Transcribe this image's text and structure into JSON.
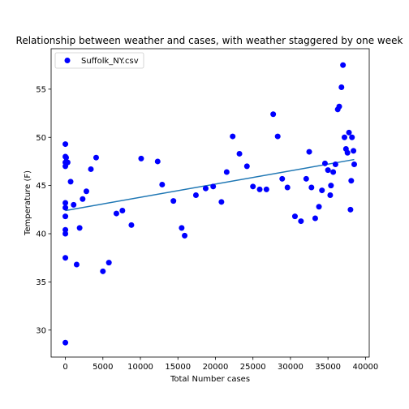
{
  "chart_data": {
    "type": "scatter",
    "title": "Relationship between weather and cases, with weather staggered by one week",
    "xlabel": "Total Number cases",
    "ylabel": "Temperature (F)",
    "xlim": [
      -1900,
      40500
    ],
    "ylim": [
      27.2,
      59.2
    ],
    "xticks": [
      0,
      5000,
      10000,
      15000,
      20000,
      25000,
      30000,
      35000,
      40000
    ],
    "yticks": [
      30,
      35,
      40,
      45,
      50,
      55
    ],
    "grid": false,
    "legend": {
      "placement": "top-left",
      "entries": [
        "Suffolk_NY.csv"
      ]
    },
    "colors": {
      "points": "#0000ff",
      "fit_line": "#1f77b4"
    },
    "series": [
      {
        "name": "Suffolk_NY.csv",
        "points": [
          [
            0,
            28.7
          ],
          [
            0,
            37.5
          ],
          [
            0,
            40.0
          ],
          [
            0,
            40.4
          ],
          [
            0,
            41.8
          ],
          [
            0,
            42.7
          ],
          [
            0,
            43.2
          ],
          [
            0,
            47.0
          ],
          [
            0,
            47.4
          ],
          [
            0,
            48.0
          ],
          [
            0,
            49.3
          ],
          [
            100,
            47.9
          ],
          [
            300,
            47.4
          ],
          [
            700,
            45.4
          ],
          [
            1100,
            43.0
          ],
          [
            1500,
            36.8
          ],
          [
            1900,
            40.6
          ],
          [
            2300,
            43.6
          ],
          [
            2800,
            44.4
          ],
          [
            3400,
            46.7
          ],
          [
            4100,
            47.9
          ],
          [
            5000,
            36.1
          ],
          [
            5800,
            37.0
          ],
          [
            6800,
            42.1
          ],
          [
            7600,
            42.4
          ],
          [
            8800,
            40.9
          ],
          [
            10100,
            47.8
          ],
          [
            12300,
            47.5
          ],
          [
            12900,
            45.1
          ],
          [
            14400,
            43.4
          ],
          [
            15500,
            40.6
          ],
          [
            15900,
            39.8
          ],
          [
            17400,
            44.0
          ],
          [
            18700,
            44.7
          ],
          [
            19700,
            44.9
          ],
          [
            20800,
            43.3
          ],
          [
            21500,
            46.4
          ],
          [
            22300,
            50.1
          ],
          [
            23200,
            48.3
          ],
          [
            24200,
            47.0
          ],
          [
            25000,
            44.9
          ],
          [
            25900,
            44.6
          ],
          [
            26800,
            44.6
          ],
          [
            27700,
            52.4
          ],
          [
            28300,
            50.1
          ],
          [
            28900,
            45.7
          ],
          [
            29600,
            44.8
          ],
          [
            30600,
            41.8
          ],
          [
            31400,
            41.3
          ],
          [
            32100,
            45.7
          ],
          [
            32500,
            48.5
          ],
          [
            32800,
            44.8
          ],
          [
            33300,
            41.6
          ],
          [
            33800,
            42.8
          ],
          [
            34200,
            44.5
          ],
          [
            34600,
            47.3
          ],
          [
            35000,
            46.6
          ],
          [
            35300,
            44.0
          ],
          [
            35400,
            45.0
          ],
          [
            35700,
            46.4
          ],
          [
            36000,
            47.2
          ],
          [
            36300,
            52.9
          ],
          [
            36500,
            53.2
          ],
          [
            36800,
            55.2
          ],
          [
            37000,
            57.5
          ],
          [
            37200,
            50.0
          ],
          [
            37400,
            48.8
          ],
          [
            37600,
            48.4
          ],
          [
            37800,
            50.5
          ],
          [
            38000,
            42.5
          ],
          [
            38100,
            45.5
          ],
          [
            38200,
            50.0
          ],
          [
            38400,
            48.6
          ],
          [
            38500,
            47.2
          ]
        ]
      }
    ],
    "fit_line": {
      "x": [
        0,
        38500
      ],
      "y": [
        42.4,
        47.7
      ]
    }
  }
}
